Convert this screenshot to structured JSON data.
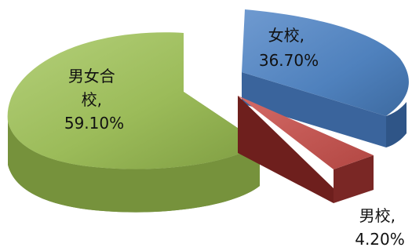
{
  "chart_data": {
    "type": "pie",
    "style": "3d-exploded",
    "legend": "none",
    "slices": [
      {
        "name": "男女合校",
        "label_lines": [
          "男女合",
          "校,",
          "59.10%"
        ],
        "value": 59.1,
        "display": "59.10%",
        "color": "#9BBB59"
      },
      {
        "name": "女校",
        "label_lines": [
          "女校,",
          "36.70%"
        ],
        "value": 36.7,
        "display": "36.70%",
        "color": "#4F81BD"
      },
      {
        "name": "男校",
        "label_lines": [
          "男校,",
          "4.20%"
        ],
        "value": 4.2,
        "display": "4.20%",
        "color": "#C0504D"
      }
    ]
  }
}
